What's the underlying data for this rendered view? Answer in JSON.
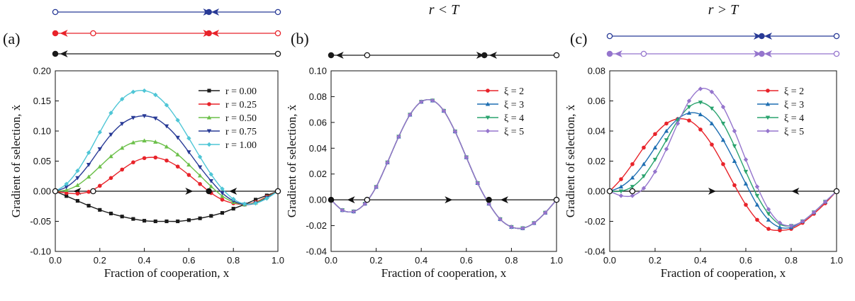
{
  "colors": {
    "black": "#1a1a1a",
    "red": "#e8232a",
    "green": "#6cc04a",
    "navy": "#283a96",
    "cyan": "#4fc6d6",
    "blue": "#1f6fb2",
    "teal": "#2aa36e",
    "purple": "#9575cd"
  },
  "chart_data": [
    {
      "type": "line",
      "panel_label": "(a)",
      "condition_label": "",
      "xlabel": "Fraction of cooperation, x",
      "ylabel": "Gradient of selection, ẋ",
      "xlim": [
        0,
        1
      ],
      "ylim": [
        -0.1,
        0.2
      ],
      "xticks": [
        "0.0",
        "0.2",
        "0.4",
        "0.6",
        "0.8",
        "1.0"
      ],
      "yticks": [
        "-0.10",
        "-0.05",
        "0.00",
        "0.05",
        "0.10",
        "0.15",
        "0.20"
      ],
      "legend_position": "top-right",
      "series": [
        {
          "name": "r = 0.00",
          "color": "black",
          "marker": "square",
          "x": [
            0,
            0.05,
            0.1,
            0.15,
            0.2,
            0.25,
            0.3,
            0.35,
            0.4,
            0.45,
            0.5,
            0.55,
            0.6,
            0.65,
            0.7,
            0.75,
            0.8,
            0.85,
            0.9,
            0.95,
            1.0
          ],
          "y": [
            0,
            -0.008,
            -0.016,
            -0.024,
            -0.031,
            -0.037,
            -0.042,
            -0.046,
            -0.049,
            -0.05,
            -0.05,
            -0.05,
            -0.048,
            -0.045,
            -0.041,
            -0.036,
            -0.029,
            -0.022,
            -0.014,
            -0.007,
            0
          ]
        },
        {
          "name": "r = 0.25",
          "color": "red",
          "marker": "circle",
          "x": [
            0,
            0.05,
            0.1,
            0.15,
            0.2,
            0.25,
            0.3,
            0.35,
            0.4,
            0.45,
            0.5,
            0.55,
            0.6,
            0.65,
            0.7,
            0.75,
            0.8,
            0.85,
            0.9,
            0.95,
            1.0
          ],
          "y": [
            0,
            -0.003,
            -0.004,
            -0.001,
            0.009,
            0.022,
            0.036,
            0.048,
            0.055,
            0.056,
            0.051,
            0.041,
            0.027,
            0.012,
            -0.003,
            -0.014,
            -0.02,
            -0.022,
            -0.018,
            -0.009,
            0
          ]
        },
        {
          "name": "r = 0.50",
          "color": "green",
          "marker": "triangle-up",
          "x": [
            0,
            0.05,
            0.1,
            0.15,
            0.2,
            0.25,
            0.3,
            0.35,
            0.4,
            0.45,
            0.5,
            0.55,
            0.6,
            0.65,
            0.7,
            0.75,
            0.8,
            0.85,
            0.9,
            0.95,
            1.0
          ],
          "y": [
            0,
            0.002,
            0.01,
            0.024,
            0.041,
            0.058,
            0.072,
            0.081,
            0.084,
            0.082,
            0.074,
            0.061,
            0.044,
            0.026,
            0.008,
            -0.008,
            -0.018,
            -0.022,
            -0.019,
            -0.01,
            0
          ]
        },
        {
          "name": "r = 0.75",
          "color": "navy",
          "marker": "triangle-down",
          "x": [
            0,
            0.05,
            0.1,
            0.15,
            0.2,
            0.25,
            0.3,
            0.35,
            0.4,
            0.45,
            0.5,
            0.55,
            0.6,
            0.65,
            0.7,
            0.75,
            0.8,
            0.85,
            0.9,
            0.95,
            1.0
          ],
          "y": [
            0,
            0.007,
            0.022,
            0.044,
            0.07,
            0.094,
            0.112,
            0.122,
            0.125,
            0.121,
            0.108,
            0.089,
            0.065,
            0.04,
            0.017,
            -0.003,
            -0.016,
            -0.022,
            -0.02,
            -0.011,
            0
          ]
        },
        {
          "name": "r = 1.00",
          "color": "cyan",
          "marker": "diamond",
          "x": [
            0,
            0.05,
            0.1,
            0.15,
            0.2,
            0.25,
            0.3,
            0.35,
            0.4,
            0.45,
            0.5,
            0.55,
            0.6,
            0.65,
            0.7,
            0.75,
            0.8,
            0.85,
            0.9,
            0.95,
            1.0
          ],
          "y": [
            0,
            0.012,
            0.034,
            0.064,
            0.098,
            0.13,
            0.153,
            0.165,
            0.167,
            0.16,
            0.143,
            0.118,
            0.088,
            0.057,
            0.028,
            0.004,
            -0.013,
            -0.021,
            -0.02,
            -0.012,
            0
          ]
        }
      ],
      "inline_flows": [
        {
          "y": 0.0,
          "points": [
            {
              "x": 0.0,
              "filled": false
            },
            {
              "x": 0.17,
              "filled": false
            },
            {
              "x": 0.69,
              "filled": true
            },
            {
              "x": 1.0,
              "filled": false
            }
          ],
          "arrows": [
            {
              "x": 0.1,
              "dir": "left"
            },
            {
              "x": 0.6,
              "dir": "right"
            },
            {
              "x": 0.8,
              "dir": "left"
            }
          ]
        }
      ],
      "flow_lines": [
        {
          "color": "navy",
          "points": [
            {
              "x": 0.0,
              "filled": false
            },
            {
              "x": 0.69,
              "filled": true
            },
            {
              "x": 1.0,
              "filled": false
            }
          ],
          "arrows": [
            {
              "x": 0.68,
              "dir": "right"
            },
            {
              "x": 0.72,
              "dir": "left"
            }
          ]
        },
        {
          "color": "red",
          "points": [
            {
              "x": 0.0,
              "filled": true
            },
            {
              "x": 0.17,
              "filled": false
            },
            {
              "x": 0.69,
              "filled": true
            },
            {
              "x": 1.0,
              "filled": false
            }
          ],
          "arrows": [
            {
              "x": 0.04,
              "dir": "left"
            },
            {
              "x": 0.68,
              "dir": "right"
            },
            {
              "x": 0.72,
              "dir": "left"
            }
          ]
        },
        {
          "color": "black",
          "points": [
            {
              "x": 0.0,
              "filled": true
            },
            {
              "x": 1.0,
              "filled": false
            }
          ],
          "arrows": [
            {
              "x": 0.04,
              "dir": "left"
            }
          ]
        }
      ]
    },
    {
      "type": "line",
      "panel_label": "(b)",
      "condition_label": "r < T",
      "xlabel": "Fraction of cooperation, x",
      "ylabel": "Gradient of selection, ẋ",
      "xlim": [
        0,
        1
      ],
      "ylim": [
        -0.04,
        0.1
      ],
      "xticks": [
        "0.0",
        "0.2",
        "0.4",
        "0.6",
        "0.8",
        "1.0"
      ],
      "yticks": [
        "-0.04",
        "-0.02",
        "0.00",
        "0.02",
        "0.04",
        "0.06",
        "0.08",
        "0.10"
      ],
      "legend_position": "top-right",
      "series": [
        {
          "name": "ξ = 2",
          "color": "red",
          "marker": "circle",
          "x": [
            0,
            0.05,
            0.1,
            0.15,
            0.2,
            0.25,
            0.3,
            0.35,
            0.4,
            0.45,
            0.5,
            0.55,
            0.6,
            0.65,
            0.7,
            0.75,
            0.8,
            0.85,
            0.9,
            0.95,
            1.0
          ],
          "y": [
            0,
            -0.008,
            -0.009,
            -0.003,
            0.01,
            0.029,
            0.049,
            0.066,
            0.076,
            0.077,
            0.069,
            0.053,
            0.033,
            0.013,
            -0.003,
            -0.015,
            -0.021,
            -0.022,
            -0.018,
            -0.01,
            0
          ]
        },
        {
          "name": "ξ = 3",
          "color": "blue",
          "marker": "triangle-up",
          "x": [
            0,
            0.05,
            0.1,
            0.15,
            0.2,
            0.25,
            0.3,
            0.35,
            0.4,
            0.45,
            0.5,
            0.55,
            0.6,
            0.65,
            0.7,
            0.75,
            0.8,
            0.85,
            0.9,
            0.95,
            1.0
          ],
          "y": [
            0,
            -0.008,
            -0.009,
            -0.003,
            0.01,
            0.029,
            0.049,
            0.066,
            0.076,
            0.077,
            0.069,
            0.053,
            0.033,
            0.013,
            -0.003,
            -0.015,
            -0.021,
            -0.022,
            -0.018,
            -0.01,
            0
          ]
        },
        {
          "name": "ξ = 4",
          "color": "teal",
          "marker": "triangle-down",
          "x": [
            0,
            0.05,
            0.1,
            0.15,
            0.2,
            0.25,
            0.3,
            0.35,
            0.4,
            0.45,
            0.5,
            0.55,
            0.6,
            0.65,
            0.7,
            0.75,
            0.8,
            0.85,
            0.9,
            0.95,
            1.0
          ],
          "y": [
            0,
            -0.008,
            -0.009,
            -0.003,
            0.01,
            0.029,
            0.049,
            0.066,
            0.076,
            0.077,
            0.069,
            0.053,
            0.033,
            0.013,
            -0.003,
            -0.015,
            -0.021,
            -0.022,
            -0.018,
            -0.01,
            0
          ]
        },
        {
          "name": "ξ = 5",
          "color": "purple",
          "marker": "diamond",
          "x": [
            0,
            0.05,
            0.1,
            0.15,
            0.2,
            0.25,
            0.3,
            0.35,
            0.4,
            0.45,
            0.5,
            0.55,
            0.6,
            0.65,
            0.7,
            0.75,
            0.8,
            0.85,
            0.9,
            0.95,
            1.0
          ],
          "y": [
            0,
            -0.008,
            -0.009,
            -0.003,
            0.01,
            0.029,
            0.049,
            0.066,
            0.076,
            0.077,
            0.069,
            0.053,
            0.033,
            0.013,
            -0.003,
            -0.015,
            -0.021,
            -0.022,
            -0.018,
            -0.01,
            0
          ]
        }
      ],
      "inline_flows": [
        {
          "y": 0.0,
          "points": [
            {
              "x": 0.0,
              "filled": true
            },
            {
              "x": 0.16,
              "filled": false
            },
            {
              "x": 0.7,
              "filled": true
            },
            {
              "x": 1.0,
              "filled": false
            }
          ],
          "arrows": [
            {
              "x": 0.09,
              "dir": "left"
            },
            {
              "x": 0.52,
              "dir": "right"
            },
            {
              "x": 0.77,
              "dir": "left"
            }
          ]
        }
      ],
      "flow_lines": [
        {
          "color": "black",
          "points": [
            {
              "x": 0.0,
              "filled": true
            },
            {
              "x": 0.16,
              "filled": false
            },
            {
              "x": 0.68,
              "filled": true
            },
            {
              "x": 1.0,
              "filled": false
            }
          ],
          "arrows": [
            {
              "x": 0.04,
              "dir": "left"
            },
            {
              "x": 0.66,
              "dir": "right"
            },
            {
              "x": 0.72,
              "dir": "left"
            }
          ]
        }
      ]
    },
    {
      "type": "line",
      "panel_label": "(c)",
      "condition_label": "r > T",
      "xlabel": "Fraction of cooperation, x",
      "ylabel": "Gradient of selection, ẋ",
      "xlim": [
        0,
        1
      ],
      "ylim": [
        -0.04,
        0.08
      ],
      "xticks": [
        "0.0",
        "0.2",
        "0.4",
        "0.6",
        "0.8",
        "1.0"
      ],
      "yticks": [
        "-0.04",
        "-0.02",
        "0.00",
        "0.02",
        "0.04",
        "0.06",
        "0.08"
      ],
      "legend_position": "top-right",
      "series": [
        {
          "name": "ξ = 2",
          "color": "red",
          "marker": "circle",
          "x": [
            0,
            0.05,
            0.1,
            0.15,
            0.2,
            0.25,
            0.3,
            0.35,
            0.4,
            0.45,
            0.5,
            0.55,
            0.6,
            0.65,
            0.7,
            0.75,
            0.8,
            0.85,
            0.9,
            0.95,
            1.0
          ],
          "y": [
            0,
            0.008,
            0.018,
            0.029,
            0.038,
            0.045,
            0.048,
            0.047,
            0.041,
            0.031,
            0.018,
            0.004,
            -0.009,
            -0.019,
            -0.025,
            -0.026,
            -0.025,
            -0.021,
            -0.015,
            -0.008,
            0
          ]
        },
        {
          "name": "ξ = 3",
          "color": "blue",
          "marker": "triangle-up",
          "x": [
            0,
            0.05,
            0.1,
            0.15,
            0.2,
            0.25,
            0.3,
            0.35,
            0.4,
            0.45,
            0.5,
            0.55,
            0.6,
            0.65,
            0.7,
            0.75,
            0.8,
            0.85,
            0.9,
            0.95,
            1.0
          ],
          "y": [
            0,
            0.003,
            0.009,
            0.018,
            0.029,
            0.04,
            0.048,
            0.052,
            0.051,
            0.045,
            0.034,
            0.02,
            0.005,
            -0.009,
            -0.019,
            -0.024,
            -0.024,
            -0.02,
            -0.014,
            -0.007,
            0
          ]
        },
        {
          "name": "ξ = 4",
          "color": "teal",
          "marker": "triangle-down",
          "x": [
            0,
            0.05,
            0.1,
            0.15,
            0.2,
            0.25,
            0.3,
            0.35,
            0.4,
            0.45,
            0.5,
            0.55,
            0.6,
            0.65,
            0.7,
            0.75,
            0.8,
            0.85,
            0.9,
            0.95,
            1.0
          ],
          "y": [
            0,
            0.0,
            0.003,
            0.01,
            0.021,
            0.034,
            0.047,
            0.056,
            0.059,
            0.055,
            0.045,
            0.03,
            0.013,
            -0.003,
            -0.015,
            -0.022,
            -0.023,
            -0.02,
            -0.014,
            -0.007,
            0
          ]
        },
        {
          "name": "ξ = 5",
          "color": "purple",
          "marker": "diamond",
          "x": [
            0,
            0.05,
            0.1,
            0.15,
            0.2,
            0.25,
            0.3,
            0.35,
            0.4,
            0.45,
            0.5,
            0.55,
            0.6,
            0.65,
            0.7,
            0.75,
            0.8,
            0.85,
            0.9,
            0.95,
            1.0
          ],
          "y": [
            0,
            -0.003,
            -0.003,
            0.002,
            0.013,
            0.028,
            0.045,
            0.06,
            0.068,
            0.066,
            0.056,
            0.04,
            0.021,
            0.003,
            -0.012,
            -0.021,
            -0.023,
            -0.02,
            -0.014,
            -0.007,
            0
          ]
        }
      ],
      "inline_flows": [
        {
          "y": 0.0,
          "points": [
            {
              "x": 0.0,
              "filled": false
            },
            {
              "x": 0.1,
              "filled": false
            },
            {
              "x": 1.0,
              "filled": false
            }
          ],
          "arrows": [
            {
              "x": 0.45,
              "dir": "right"
            },
            {
              "x": 0.82,
              "dir": "left"
            }
          ]
        }
      ],
      "flow_lines": [
        {
          "color": "navy",
          "points": [
            {
              "x": 0.0,
              "filled": false
            },
            {
              "x": 0.67,
              "filled": true
            },
            {
              "x": 1.0,
              "filled": false
            }
          ],
          "arrows": [
            {
              "x": 0.65,
              "dir": "right"
            },
            {
              "x": 0.7,
              "dir": "left"
            }
          ]
        },
        {
          "color": "purple",
          "points": [
            {
              "x": 0.0,
              "filled": true
            },
            {
              "x": 0.15,
              "filled": false
            },
            {
              "x": 0.67,
              "filled": true
            },
            {
              "x": 1.0,
              "filled": false
            }
          ],
          "arrows": [
            {
              "x": 0.04,
              "dir": "left"
            },
            {
              "x": 0.65,
              "dir": "right"
            },
            {
              "x": 0.7,
              "dir": "left"
            }
          ]
        }
      ]
    }
  ]
}
